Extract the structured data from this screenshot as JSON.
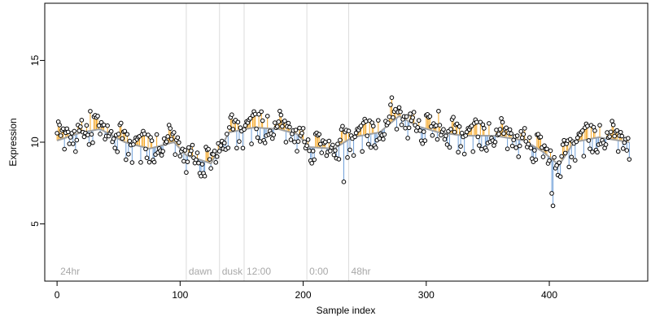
{
  "chart_data": {
    "type": "scatter",
    "title": "",
    "xlabel": "Sample index",
    "ylabel": "Expression",
    "xlim": [
      -10,
      480
    ],
    "ylim": [
      1.5,
      18.5
    ],
    "x_ticks": [
      0,
      100,
      200,
      300,
      400
    ],
    "y_ticks": [
      5,
      10,
      15
    ],
    "grid": false,
    "colors": {
      "above": "#f5a623",
      "below": "#6f9fd8",
      "trend": "#a0a0a0",
      "vline": "#dcdcdc",
      "vlabel": "#a8a8a8"
    },
    "markers": [
      {
        "x": 0,
        "label": "24hr"
      },
      {
        "x": 105,
        "label": "dawn"
      },
      {
        "x": 132,
        "label": "dusk"
      },
      {
        "x": 152,
        "label": "12:00"
      },
      {
        "x": 203,
        "label": "0:00"
      },
      {
        "x": 237,
        "label": "48hr"
      }
    ],
    "anchors": [
      [
        0,
        10.1
      ],
      [
        20,
        10.6
      ],
      [
        35,
        10.8
      ],
      [
        55,
        10.0
      ],
      [
        75,
        9.6
      ],
      [
        95,
        10.0
      ],
      [
        105,
        9.2
      ],
      [
        125,
        8.7
      ],
      [
        132,
        9.6
      ],
      [
        140,
        10.6
      ],
      [
        160,
        10.9
      ],
      [
        180,
        10.8
      ],
      [
        195,
        10.5
      ],
      [
        205,
        9.7
      ],
      [
        225,
        9.6
      ],
      [
        240,
        10.3
      ],
      [
        262,
        10.6
      ],
      [
        278,
        11.6
      ],
      [
        292,
        11.0
      ],
      [
        310,
        10.6
      ],
      [
        330,
        10.4
      ],
      [
        355,
        10.4
      ],
      [
        380,
        10.1
      ],
      [
        395,
        9.4
      ],
      [
        408,
        8.6
      ],
      [
        420,
        10.0
      ],
      [
        440,
        10.3
      ],
      [
        465,
        10.0
      ]
    ],
    "series": {
      "offsets": [
        0.6,
        -0.5,
        1.1,
        -0.3,
        0.7,
        -0.9,
        0.4,
        1.5,
        -0.2,
        0.3,
        -1.1,
        0.8,
        0.2,
        -0.6,
        1.2,
        0.1,
        -0.4,
        0.9,
        -1.3,
        0.5,
        -0.1,
        1.4,
        0.3,
        -0.8,
        0.6,
        -0.3,
        1.0,
        -1.5,
        0.2,
        0.7,
        -0.5,
        0.4,
        -1.0,
        1.3,
        0.0,
        -0.7,
        0.8,
        -0.2,
        0.5,
        -1.2,
        1.1,
        -0.4,
        0.3,
        0.9,
        -0.9,
        0.1,
        -0.6,
        1.2,
        -0.1,
        0.6,
        -1.4,
        0.4,
        0.2,
        -0.3,
        1.0,
        -0.8,
        0.5,
        -0.5,
        0.7,
        -1.1
      ],
      "extremes": [
        [
          27,
          1.2
        ],
        [
          120,
          -0.9
        ],
        [
          233,
          -2.4
        ],
        [
          272,
          1.5
        ],
        [
          402,
          -2.1
        ],
        [
          403,
          -2.8
        ],
        [
          310,
          1.3
        ],
        [
          166,
          1.0
        ]
      ]
    }
  }
}
